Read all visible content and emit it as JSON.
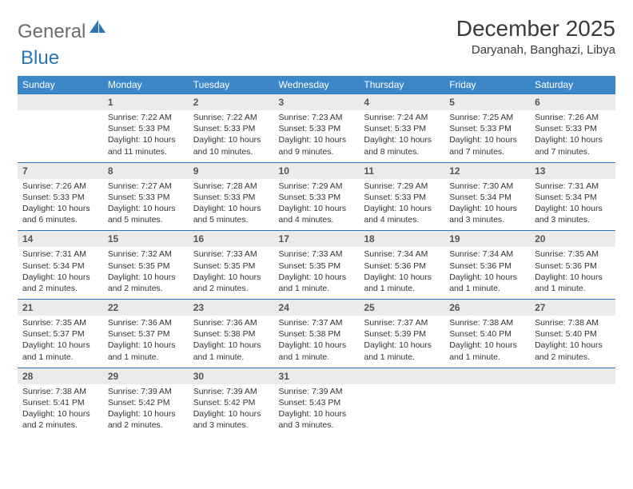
{
  "logo": {
    "left": "General",
    "right": "Blue"
  },
  "title": "December 2025",
  "location": "Daryanah, Banghazi, Libya",
  "colors": {
    "header_bg": "#3c87c7",
    "header_text": "#ffffff",
    "daynum_bg": "#ebebeb",
    "rule": "#2b74b8",
    "logo_gray": "#6b6b6b",
    "logo_blue": "#2b74b8"
  },
  "weekdays": [
    "Sunday",
    "Monday",
    "Tuesday",
    "Wednesday",
    "Thursday",
    "Friday",
    "Saturday"
  ],
  "days": {
    "1": {
      "sunrise": "7:22 AM",
      "sunset": "5:33 PM",
      "daylight": "10 hours and 11 minutes."
    },
    "2": {
      "sunrise": "7:22 AM",
      "sunset": "5:33 PM",
      "daylight": "10 hours and 10 minutes."
    },
    "3": {
      "sunrise": "7:23 AM",
      "sunset": "5:33 PM",
      "daylight": "10 hours and 9 minutes."
    },
    "4": {
      "sunrise": "7:24 AM",
      "sunset": "5:33 PM",
      "daylight": "10 hours and 8 minutes."
    },
    "5": {
      "sunrise": "7:25 AM",
      "sunset": "5:33 PM",
      "daylight": "10 hours and 7 minutes."
    },
    "6": {
      "sunrise": "7:26 AM",
      "sunset": "5:33 PM",
      "daylight": "10 hours and 7 minutes."
    },
    "7": {
      "sunrise": "7:26 AM",
      "sunset": "5:33 PM",
      "daylight": "10 hours and 6 minutes."
    },
    "8": {
      "sunrise": "7:27 AM",
      "sunset": "5:33 PM",
      "daylight": "10 hours and 5 minutes."
    },
    "9": {
      "sunrise": "7:28 AM",
      "sunset": "5:33 PM",
      "daylight": "10 hours and 5 minutes."
    },
    "10": {
      "sunrise": "7:29 AM",
      "sunset": "5:33 PM",
      "daylight": "10 hours and 4 minutes."
    },
    "11": {
      "sunrise": "7:29 AM",
      "sunset": "5:33 PM",
      "daylight": "10 hours and 4 minutes."
    },
    "12": {
      "sunrise": "7:30 AM",
      "sunset": "5:34 PM",
      "daylight": "10 hours and 3 minutes."
    },
    "13": {
      "sunrise": "7:31 AM",
      "sunset": "5:34 PM",
      "daylight": "10 hours and 3 minutes."
    },
    "14": {
      "sunrise": "7:31 AM",
      "sunset": "5:34 PM",
      "daylight": "10 hours and 2 minutes."
    },
    "15": {
      "sunrise": "7:32 AM",
      "sunset": "5:35 PM",
      "daylight": "10 hours and 2 minutes."
    },
    "16": {
      "sunrise": "7:33 AM",
      "sunset": "5:35 PM",
      "daylight": "10 hours and 2 minutes."
    },
    "17": {
      "sunrise": "7:33 AM",
      "sunset": "5:35 PM",
      "daylight": "10 hours and 1 minute."
    },
    "18": {
      "sunrise": "7:34 AM",
      "sunset": "5:36 PM",
      "daylight": "10 hours and 1 minute."
    },
    "19": {
      "sunrise": "7:34 AM",
      "sunset": "5:36 PM",
      "daylight": "10 hours and 1 minute."
    },
    "20": {
      "sunrise": "7:35 AM",
      "sunset": "5:36 PM",
      "daylight": "10 hours and 1 minute."
    },
    "21": {
      "sunrise": "7:35 AM",
      "sunset": "5:37 PM",
      "daylight": "10 hours and 1 minute."
    },
    "22": {
      "sunrise": "7:36 AM",
      "sunset": "5:37 PM",
      "daylight": "10 hours and 1 minute."
    },
    "23": {
      "sunrise": "7:36 AM",
      "sunset": "5:38 PM",
      "daylight": "10 hours and 1 minute."
    },
    "24": {
      "sunrise": "7:37 AM",
      "sunset": "5:38 PM",
      "daylight": "10 hours and 1 minute."
    },
    "25": {
      "sunrise": "7:37 AM",
      "sunset": "5:39 PM",
      "daylight": "10 hours and 1 minute."
    },
    "26": {
      "sunrise": "7:38 AM",
      "sunset": "5:40 PM",
      "daylight": "10 hours and 1 minute."
    },
    "27": {
      "sunrise": "7:38 AM",
      "sunset": "5:40 PM",
      "daylight": "10 hours and 2 minutes."
    },
    "28": {
      "sunrise": "7:38 AM",
      "sunset": "5:41 PM",
      "daylight": "10 hours and 2 minutes."
    },
    "29": {
      "sunrise": "7:39 AM",
      "sunset": "5:42 PM",
      "daylight": "10 hours and 2 minutes."
    },
    "30": {
      "sunrise": "7:39 AM",
      "sunset": "5:42 PM",
      "daylight": "10 hours and 3 minutes."
    },
    "31": {
      "sunrise": "7:39 AM",
      "sunset": "5:43 PM",
      "daylight": "10 hours and 3 minutes."
    }
  },
  "grid": [
    [
      null,
      1,
      2,
      3,
      4,
      5,
      6
    ],
    [
      7,
      8,
      9,
      10,
      11,
      12,
      13
    ],
    [
      14,
      15,
      16,
      17,
      18,
      19,
      20
    ],
    [
      21,
      22,
      23,
      24,
      25,
      26,
      27
    ],
    [
      28,
      29,
      30,
      31,
      null,
      null,
      null
    ]
  ],
  "labels": {
    "sunrise_prefix": "Sunrise: ",
    "sunset_prefix": "Sunset: ",
    "daylight_prefix": "Daylight: "
  }
}
